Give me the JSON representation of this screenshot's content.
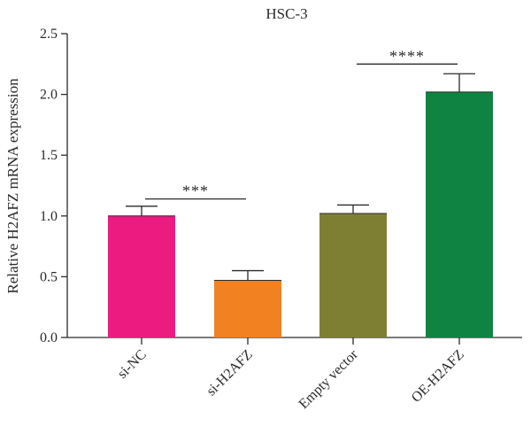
{
  "chart_data": {
    "type": "bar",
    "title": "HSC-3",
    "xlabel": "",
    "ylabel": "Relative H2AFZ mRNA expression",
    "ylim": [
      0,
      2.5
    ],
    "yticks": [
      "0.0",
      "0.5",
      "1.0",
      "1.5",
      "2.0",
      "2.5"
    ],
    "categories": [
      "si-NC",
      "si-H2AFZ",
      "Empty vector",
      "OE-H2AFZ"
    ],
    "values": [
      1.0,
      0.47,
      1.02,
      2.02
    ],
    "errors": [
      0.08,
      0.08,
      0.07,
      0.15
    ],
    "colors": [
      "#ec1b80",
      "#f28121",
      "#7f7f34",
      "#0f8442"
    ],
    "significance": [
      {
        "from": 0,
        "to": 1,
        "label": "***",
        "y": 1.14
      },
      {
        "from": 2,
        "to": 3,
        "label": "****",
        "y": 2.25
      }
    ],
    "grid": false,
    "legend": "none"
  }
}
